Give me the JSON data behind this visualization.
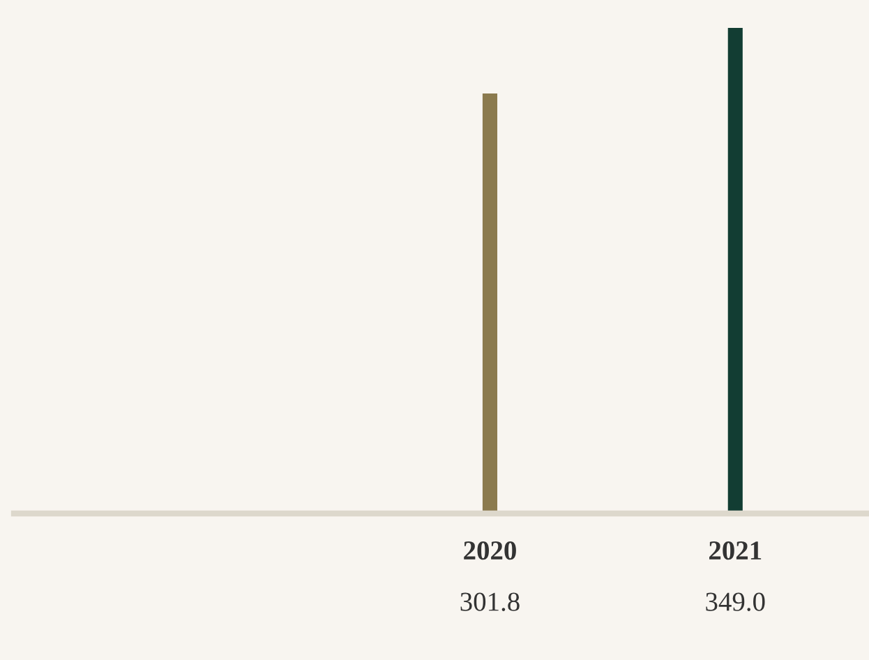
{
  "chart_data": {
    "type": "bar",
    "categories": [
      "2020",
      "2021"
    ],
    "values": [
      301.8,
      349.0
    ],
    "colors": [
      "#8b7a4e",
      "#123d33"
    ],
    "value_labels": [
      "301.8",
      "349.0"
    ],
    "tick_labels": "x",
    "grid": false,
    "legend": false
  }
}
